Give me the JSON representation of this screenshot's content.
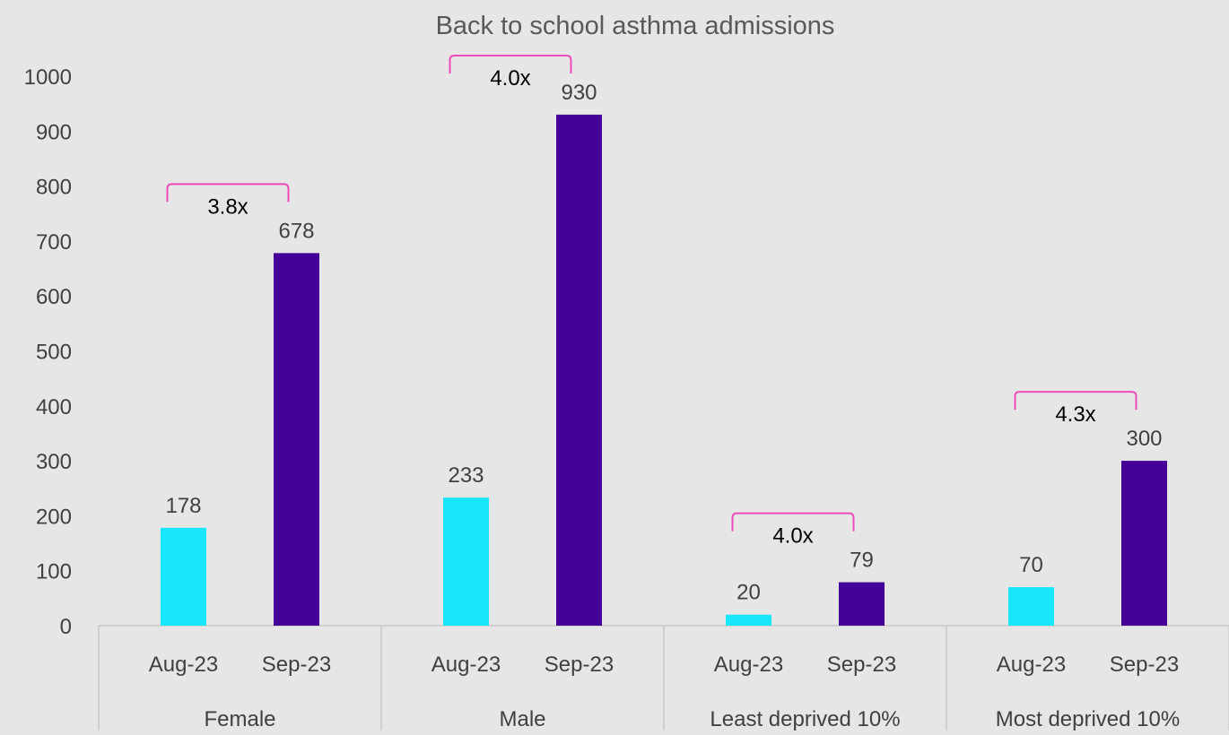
{
  "chart_data": {
    "type": "bar",
    "title": "Back to school asthma admissions",
    "xlabel": "",
    "ylabel": "",
    "ylim": [
      0,
      1000
    ],
    "yticks": [
      0,
      100,
      200,
      300,
      400,
      500,
      600,
      700,
      800,
      900,
      1000
    ],
    "grid": false,
    "legend": "none",
    "groups": [
      {
        "name": "Female",
        "bars": [
          {
            "label": "Aug-23",
            "value": 178,
            "color": "#17e6fb"
          },
          {
            "label": "Sep-23",
            "value": 678,
            "color": "#440099"
          }
        ],
        "ratio_label": "3.8x"
      },
      {
        "name": "Male",
        "bars": [
          {
            "label": "Aug-23",
            "value": 233,
            "color": "#17e6fb"
          },
          {
            "label": "Sep-23",
            "value": 930,
            "color": "#440099"
          }
        ],
        "ratio_label": "4.0x"
      },
      {
        "name": "Least deprived 10%",
        "bars": [
          {
            "label": "Aug-23",
            "value": 20,
            "color": "#17e6fb"
          },
          {
            "label": "Sep-23",
            "value": 79,
            "color": "#440099"
          }
        ],
        "ratio_label": "4.0x"
      },
      {
        "name": "Most deprived 10%",
        "bars": [
          {
            "label": "Aug-23",
            "value": 70,
            "color": "#17e6fb"
          },
          {
            "label": "Sep-23",
            "value": 300,
            "color": "#440099"
          }
        ],
        "ratio_label": "4.3x"
      }
    ],
    "colors": {
      "aug": "#17e6fb",
      "sep": "#440099",
      "bracket": "#ec4cb8",
      "axis_text": "#404040",
      "background": "#e6e6e6"
    }
  }
}
